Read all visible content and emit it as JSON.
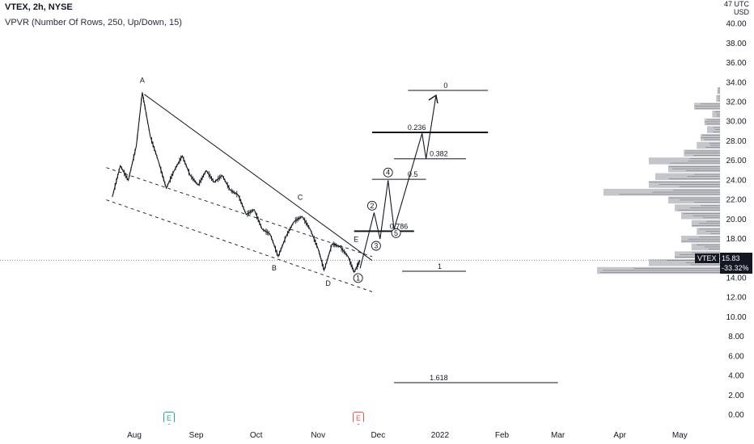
{
  "header": {
    "title": "VTEX, 2h, NYSE",
    "indicator": "VPVR (Number Of Rows, 250, Up/Down, 15)"
  },
  "currency_label": "47 UTC\nUSD",
  "current": {
    "symbol": "VTEX",
    "price": "15.83",
    "change": "-33.32%"
  },
  "events": {
    "earnings_1": "E",
    "earnings_2": "E"
  },
  "chart_data": {
    "type": "line",
    "title": "VTEX, 2h, NYSE",
    "y_ticks": [
      "0.00",
      "2.00",
      "4.00",
      "6.00",
      "8.00",
      "10.00",
      "12.00",
      "14.00",
      "16.00",
      "18.00",
      "20.00",
      "22.00",
      "24.00",
      "26.00",
      "28.00",
      "30.00",
      "32.00",
      "34.00",
      "36.00",
      "38.00",
      "40.00"
    ],
    "x_ticks": [
      "Aug",
      "Sep",
      "Oct",
      "Nov",
      "Dec",
      "2022",
      "Feb",
      "Mar",
      "Apr",
      "May"
    ],
    "ylim": [
      -1,
      42
    ],
    "price_series": {
      "name": "VTEX",
      "x": [
        "2021-07-21",
        "2021-07-25",
        "2021-07-29",
        "2021-08-02",
        "2021-08-05",
        "2021-08-09",
        "2021-08-13",
        "2021-08-17",
        "2021-08-21",
        "2021-08-25",
        "2021-08-29",
        "2021-09-02",
        "2021-09-06",
        "2021-09-10",
        "2021-09-14",
        "2021-09-18",
        "2021-09-22",
        "2021-09-26",
        "2021-09-30",
        "2021-10-04",
        "2021-10-08",
        "2021-10-12",
        "2021-10-16",
        "2021-10-20",
        "2021-10-24",
        "2021-10-28",
        "2021-11-01",
        "2021-11-04",
        "2021-11-08",
        "2021-11-12",
        "2021-11-16",
        "2021-11-19",
        "2021-11-22"
      ],
      "y": [
        22.3,
        25.5,
        24.0,
        27.5,
        33.0,
        28.5,
        26.0,
        23.2,
        25.0,
        26.5,
        24.5,
        23.5,
        25.0,
        23.8,
        24.5,
        23.0,
        22.5,
        20.5,
        21.0,
        19.0,
        18.5,
        16.2,
        18.3,
        19.8,
        20.3,
        19.0,
        17.0,
        14.8,
        17.5,
        17.2,
        16.2,
        14.6,
        15.8
      ]
    },
    "wave_labels": [
      {
        "t": "A",
        "x": "2021-08-05",
        "y": 34.0
      },
      {
        "t": "B",
        "x": "2021-10-10",
        "y": 14.8
      },
      {
        "t": "C",
        "x": "2021-10-23",
        "y": 22.0
      },
      {
        "t": "D",
        "x": "2021-11-06",
        "y": 13.2
      },
      {
        "t": "E",
        "x": "2021-11-20",
        "y": 17.7
      }
    ],
    "trend_lines": [
      {
        "x1": "2021-08-06",
        "y1": 32.8,
        "x2": "2021-11-28",
        "y2": 15.8,
        "dash": false
      },
      {
        "x1": "2021-07-18",
        "y1": 25.3,
        "x2": "2021-11-28",
        "y2": 16.2,
        "dash": true
      },
      {
        "x1": "2021-07-18",
        "y1": 22.0,
        "x2": "2021-11-28",
        "y2": 12.6,
        "dash": true
      }
    ],
    "projection": {
      "points": [
        {
          "x": "2021-11-22",
          "y": 15.0
        },
        {
          "x": "2021-11-29",
          "y": 20.7
        },
        {
          "x": "2021-12-02",
          "y": 18.0
        },
        {
          "x": "2021-12-06",
          "y": 24.0
        },
        {
          "x": "2021-12-09",
          "y": 19.0
        },
        {
          "x": "2021-12-23",
          "y": 28.8
        },
        {
          "x": "2021-12-25",
          "y": 26.2
        },
        {
          "x": "2021-12-30",
          "y": 32.7
        }
      ],
      "circled": [
        {
          "t": "1",
          "x": "2021-11-21",
          "y": 14.0
        },
        {
          "t": "2",
          "x": "2021-11-28",
          "y": 21.4
        },
        {
          "t": "3",
          "x": "2021-11-30",
          "y": 17.3
        },
        {
          "t": "4",
          "x": "2021-12-06",
          "y": 24.8
        },
        {
          "t": "5",
          "x": "2021-12-10",
          "y": 18.6
        }
      ]
    },
    "fib_levels": [
      {
        "label": "0",
        "value": 33.2,
        "bold": false,
        "x1": "2021-12-16",
        "x2": "2022-01-25"
      },
      {
        "label": "0.236",
        "value": 28.9,
        "bold": true,
        "x1": "2021-11-28",
        "x2": "2022-01-25"
      },
      {
        "label": "0.382",
        "value": 26.2,
        "bold": false,
        "x1": "2021-12-09",
        "x2": "2022-01-14"
      },
      {
        "label": "0.5",
        "value": 24.1,
        "bold": false,
        "x1": "2021-11-28",
        "x2": "2021-12-25"
      },
      {
        "label": "0.786",
        "value": 18.8,
        "bold": true,
        "x1": "2021-11-19",
        "x2": "2021-12-19"
      },
      {
        "label": "1",
        "value": 14.7,
        "bold": false,
        "x1": "2021-12-13",
        "x2": "2022-01-14"
      },
      {
        "label": "1.618",
        "value": 3.3,
        "bold": false,
        "x1": "2021-12-09",
        "x2": "2022-03-01"
      }
    ],
    "volume_profile": {
      "price_levels": [
        14.8,
        15.6,
        16.4,
        17.2,
        18.0,
        18.8,
        19.6,
        20.4,
        21.2,
        22.0,
        22.8,
        23.6,
        24.4,
        25.2,
        26.0,
        26.8,
        27.6,
        28.4,
        29.2,
        30.0,
        30.8,
        31.6,
        32.4,
        33.2
      ],
      "volume_pct": [
        0.95,
        0.55,
        0.35,
        0.22,
        0.3,
        0.18,
        0.22,
        0.3,
        0.35,
        0.4,
        0.9,
        0.55,
        0.5,
        0.4,
        0.55,
        0.28,
        0.18,
        0.15,
        0.1,
        0.12,
        0.06,
        0.2,
        0.03,
        0.02
      ]
    }
  }
}
